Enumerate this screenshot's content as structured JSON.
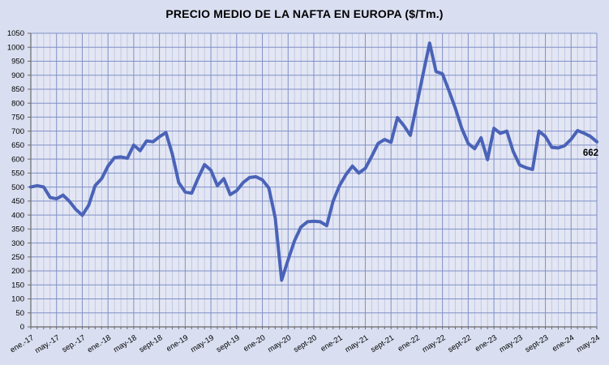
{
  "chart_data": {
    "type": "line",
    "title": "PRECIO MEDIO DE LA NAFTA EN EUROPA ($/Tm.)",
    "unit": "$/Tm.",
    "xlabel": "",
    "ylabel": "",
    "ylim": [
      0,
      1050
    ],
    "y_tick_step": 50,
    "grid": "on",
    "legend": "none",
    "n_points": 89,
    "x_tick_every": 4,
    "x_tick_labels": [
      "ene.-17",
      "may.-17",
      "sep.-17",
      "ene.-18",
      "may-18",
      "sept-18",
      "ene-19",
      "may-19",
      "sept-19",
      "ene-20",
      "may-20",
      "sept-20",
      "ene-21",
      "may-21",
      "sept-21",
      "ene-22",
      "may-22",
      "sept-22",
      "ene-23",
      "may-23",
      "sept-23",
      "ene-24",
      "may-24"
    ],
    "series": [
      {
        "name": "Precio medio de la nafta en Europa",
        "start": "ene-17",
        "end": "may-24",
        "values": [
          500,
          505,
          500,
          463,
          458,
          471,
          449,
          420,
          399,
          435,
          505,
          530,
          575,
          605,
          608,
          603,
          650,
          630,
          665,
          662,
          680,
          695,
          618,
          516,
          482,
          478,
          531,
          580,
          560,
          505,
          530,
          473,
          487,
          516,
          534,
          537,
          526,
          497,
          390,
          167,
          240,
          308,
          357,
          376,
          378,
          376,
          362,
          450,
          505,
          545,
          575,
          550,
          567,
          610,
          656,
          670,
          660,
          748,
          720,
          685,
          795,
          905,
          1015,
          913,
          905,
          845,
          782,
          710,
          656,
          637,
          676,
          598,
          710,
          692,
          700,
          627,
          579,
          569,
          563,
          700,
          681,
          642,
          640,
          648,
          671,
          702,
          693,
          681,
          662
        ]
      }
    ],
    "end_label": "662",
    "colors": {
      "line": "#4a63b8",
      "grid_major": "#8090c8",
      "grid_minor": "#b6bfe0",
      "plot_bg": "#e3e6f3",
      "page_bg": "#d9def0",
      "axis": "#6a6a6a",
      "text": "#000000"
    }
  }
}
